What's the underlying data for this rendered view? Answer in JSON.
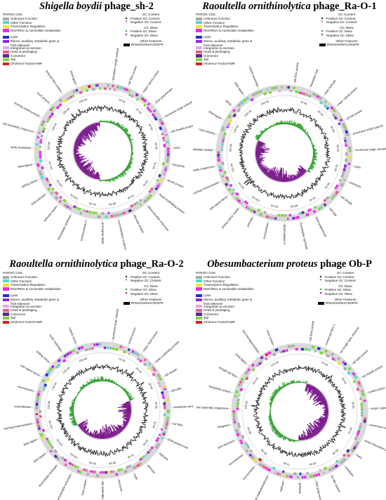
{
  "panels": [
    {
      "id": "p1",
      "title_italic": "Shigella boydii",
      "title_rest": " phage_sh-2",
      "labels_side": "left",
      "kb_labels": [
        "10 kb",
        "20 kb",
        "30 kb",
        "40 kb",
        "50 kb",
        "60 kb",
        "70 kb",
        "80 kb",
        "90 kb",
        "100 kb",
        "110 kb",
        "120 kb",
        "130 kb",
        "140 kb",
        "150 kb",
        "160 kb"
      ],
      "gene_labels": [
        "baseplate wedge subunit",
        "tail fiber protein",
        "major capsid protein",
        "DNA polymerase",
        "terminase large subunit",
        "tail sheath protein",
        "holin",
        "lysozyme",
        "portal protein",
        "head scaffolding protein",
        "ribonucleotide reductase",
        "tail tube protein",
        "recombination endonuclease",
        "anti-sigma factor",
        "endonuclease II",
        "thymidylate synthase",
        "helicase loader",
        "DNA primase",
        "sliding clamp",
        "RNA ligase",
        "nudix hydrolase",
        "tail assembly chaperone",
        "homing endonuclease",
        "neck protein",
        "long tail fiber protein",
        "DNA ligase"
      ]
    },
    {
      "id": "p2",
      "title_italic": "Raoultella ornithinolytica",
      "title_rest": " phage_Ra-O-1",
      "labels_side": "right",
      "kb_labels": [
        "10 kb",
        "20 kb",
        "30 kb",
        "40 kb",
        "50 kb",
        "60 kb",
        "70 kb",
        "80 kb",
        "90 kb",
        "100 kb",
        "110 kb",
        "120 kb",
        "130 kb",
        "140 kb",
        "150 kb",
        "160 kb"
      ],
      "gene_labels": [
        "tail fiber protein",
        "baseplate hub",
        "DNA helicase",
        "major capsid protein",
        "portal protein",
        "terminase small subunit",
        "terminase large subunit",
        "holin",
        "endolysin",
        "tail sheath",
        "tail tube",
        "DNA polymerase",
        "thymidylate synthase",
        "ribonuclease H",
        "exonuclease",
        "primase",
        "sliding clamp loader",
        "anti-sigma factor",
        "homing endonuclease",
        "tail assembly chaperone",
        "baseplate wedge",
        "neck whisker",
        "RNA ligase",
        "tRNA",
        "DNA ligase",
        "capsid assembly"
      ]
    },
    {
      "id": "p3",
      "title_italic": "Raoultella ornithinolytica",
      "title_rest": " phage_Ra-O-2",
      "labels_side": "left",
      "kb_labels": [
        "10 kb",
        "20 kb",
        "30 kb",
        "40 kb",
        "50 kb",
        "60 kb",
        "70 kb",
        "80 kb",
        "90 kb",
        "100 kb",
        "110 kb",
        "120 kb",
        "130 kb",
        "140 kb",
        "150 kb",
        "160 kb"
      ],
      "gene_labels": [
        "terminase large subunit",
        "portal protein",
        "major head protein",
        "head scaffolding protein",
        "tail sheath",
        "tail tube",
        "baseplate wedge subunit",
        "tail fiber",
        "DNA polymerase",
        "helicase",
        "primase",
        "holin",
        "lysozyme",
        "tail assembly chaperone",
        "neck protein",
        "ribonucleotide reductase",
        "thymidylate synthase",
        "DNA ligase",
        "RNA ligase",
        "homing endonuclease",
        "recombinase",
        "exonuclease",
        "anti-sigma factor",
        "sliding clamp",
        "nudix hydrolase",
        "capsid vertex"
      ]
    },
    {
      "id": "p4",
      "title_italic": "Obesumbacterium proteus",
      "title_rest": " phage  Ob-P",
      "labels_side": "left",
      "kb_labels": [
        "10 kb",
        "20 kb",
        "30 kb",
        "40 kb",
        "50 kb",
        "60 kb",
        "70 kb",
        "80 kb",
        "90 kb",
        "100 kb",
        "110 kb",
        "120 kb"
      ],
      "gene_labels": [
        "tail fiber protein",
        "central tail fiber J",
        "tail length tape measure",
        "tail tube protein",
        "tail sheath protein",
        "portal protein",
        "major capsid protein",
        "terminase large subunit",
        "head maturation protease",
        "holin",
        "endolysin",
        "Rz-like spanin",
        "DNA polymerase",
        "primase",
        "helicase",
        "DNA methyltransferase",
        "exonuclease",
        "recombinase",
        "anti-repressor",
        "integrase",
        "tail assembly chaperone",
        "baseplate protein",
        "straight tail fiber",
        "DNA ligase",
        "lytic transglycosylase",
        "neck protein"
      ]
    }
  ],
  "legend": {
    "phrog_header": "PHROG CDS",
    "phrog_items": [
      {
        "label": "Unknown Function",
        "color": "#a9a9a9"
      },
      {
        "label": "Other Function",
        "color": "#4fd8d8"
      },
      {
        "label": "Transcription Regulation",
        "color": "#f2e61d"
      },
      {
        "label": "DNA/RNA & nucleotide metabolism",
        "color": "#e82ce8"
      },
      {
        "label": "Lysis",
        "color": "#1f2cd8"
      },
      {
        "label": "Moron, auxiliary metabolic gene & host takeover",
        "color": "#8a2be2"
      },
      {
        "label": "Integration & excision",
        "color": "#e8a3e8"
      },
      {
        "label": "Head & packaging",
        "color": "#ee5a8a"
      },
      {
        "label": "Connector",
        "color": "#5b2d8e"
      },
      {
        "label": "Tail",
        "color": "#7ad83a"
      },
      {
        "label": "Virulence Factor/AMR",
        "color": "#e31a1c"
      }
    ],
    "gc_content_header": "GC Content",
    "gc_positive": "Positive GC Content",
    "gc_negative": "Negative GC Content",
    "gc_skew_header": "GC Skew",
    "skew_positive": "Positive GC Skew",
    "skew_negative": "Negative GC Skew",
    "other_header": "Other Features",
    "other_item": "tRNA/tmRNA/CRISPR"
  },
  "colors": {
    "gc_content": "#000000",
    "skew_positive": "#2e9e2e",
    "skew_negative": "#7b1a8c",
    "ring": "#d9d9d9"
  }
}
